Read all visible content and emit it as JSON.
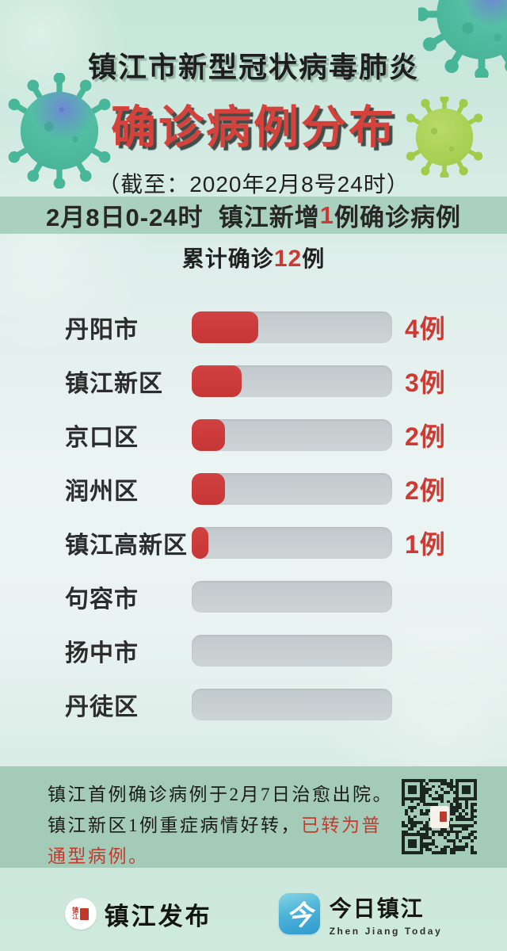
{
  "header": {
    "title_line1": "镇江市新型冠状病毒肺炎",
    "title_line2": "确诊病例分布",
    "subtitle": "（截至：2020年2月8号24时）"
  },
  "banner": {
    "prefix": "2月8日0-24时  镇江新增",
    "highlight": "1",
    "suffix": "例确诊病例"
  },
  "cumulative": {
    "prefix": "累计确诊",
    "highlight": "12",
    "suffix": "例"
  },
  "chart_data": {
    "type": "bar",
    "orientation": "horizontal",
    "title": "确诊病例分布",
    "categories": [
      "丹阳市",
      "镇江新区",
      "京口区",
      "润州区",
      "镇江高新区",
      "句容市",
      "扬中市",
      "丹徒区"
    ],
    "values": [
      4,
      3,
      2,
      2,
      1,
      0,
      0,
      0
    ],
    "value_labels": [
      "4例",
      "3例",
      "2例",
      "2例",
      "1例",
      "",
      "",
      ""
    ],
    "total": 12,
    "unit": "例",
    "xlim": [
      0,
      12
    ],
    "legend": "none",
    "grid": "off",
    "colors": {
      "bar_fill": "#cc3b3b",
      "bar_track": "#c6ced1",
      "value_text": "#cb3a33",
      "label_text": "#2c2c2c"
    }
  },
  "notice": {
    "segments": [
      {
        "text": "镇江首例确诊病例于2月7日治愈出院。\n镇江新区1例重症病情好转，",
        "style": "dark"
      },
      {
        "text": "已转为普通型病例。",
        "style": "red"
      }
    ],
    "qr_icon": "qr-code"
  },
  "footer": {
    "left_brand": {
      "seal_chars": "镇江",
      "name": "镇江发布",
      "seal_icon": "zhenjiang-fabu-seal-icon"
    },
    "right_brand": {
      "icon_glyph": "今",
      "title": "今日镇江",
      "subtitle": "Zhen Jiang Today",
      "icon": "jinri-zhenjiang-app-icon"
    }
  },
  "decor": {
    "virus_icons": [
      "virus-icon-teal-top-right",
      "virus-icon-teal-left",
      "virus-icon-yellow-right"
    ]
  },
  "colors": {
    "accent_red": "#cb3a33",
    "title_red": "#d5423b",
    "banner_bg": "#aad1c0",
    "notice_panel_bg": "#a3cbb8",
    "background_teal": "#c5e6d9",
    "app_icon_blue": "#2e9acd",
    "qr_dark": "#1b2620"
  }
}
